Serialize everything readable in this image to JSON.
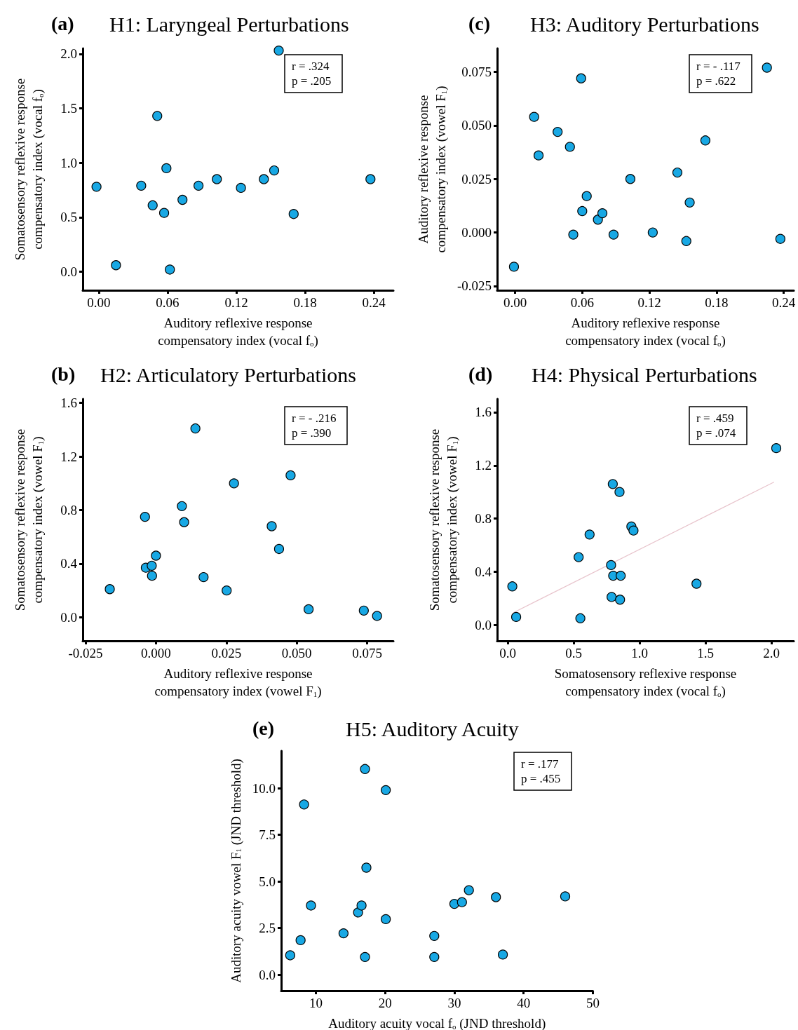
{
  "chart_data": [
    {
      "type": "scatter",
      "title": "H1: Laryngeal Perturbations",
      "xlabel": "Auditory reflexive response\ncompensatory index (vocal f$_{o}$)",
      "ylabel": "Somatosensory reflexive response\ncompensatory index (vocal f$_{o}$)",
      "annotations": [
        "(a)",
        "r = .324",
        "p = .205"
      ],
      "color": "#18a8e4",
      "marker": "circle",
      "grid": false,
      "x": [
        -0.002,
        0.015,
        0.037,
        0.047,
        0.051,
        0.057,
        0.059,
        0.062,
        0.073,
        0.087,
        0.103,
        0.124,
        0.144,
        0.153,
        0.157,
        0.17,
        0.237
      ],
      "values": [
        0.78,
        0.06,
        0.79,
        0.61,
        1.43,
        0.54,
        0.95,
        0.02,
        0.66,
        0.79,
        0.85,
        0.77,
        0.85,
        0.93,
        2.03,
        0.53,
        0.85
      ],
      "xlim": [
        -0.014,
        0.257
      ],
      "ylim": [
        -0.17,
        2.05
      ],
      "xticks": [
        {
          "value": 0,
          "label": "0.00"
        },
        0.06,
        0.12,
        0.18,
        0.24
      ],
      "yticks": [
        {
          "value": 0,
          "label": "0.0"
        },
        0.5,
        {
          "value": 1,
          "label": "1.0"
        },
        1.5,
        {
          "value": 2,
          "label": "2.0"
        }
      ]
    },
    {
      "type": "scatter",
      "title": "H3: Auditory Perturbations",
      "xlabel": "Auditory reflexive response\ncompensatory index (vocal f$_{o}$)",
      "ylabel": "Auditory reflexive response\ncompensatory index (vowel F$_{1}$)",
      "annotations": [
        "(c)",
        "r = - .117",
        "p = .622"
      ],
      "color": "#18a8e4",
      "marker": "circle",
      "grid": false,
      "x": [
        -0.001,
        0.017,
        0.021,
        0.038,
        0.049,
        0.052,
        0.059,
        0.06,
        0.064,
        0.074,
        0.078,
        0.088,
        0.103,
        0.123,
        0.145,
        0.153,
        0.156,
        0.17,
        0.225,
        0.237
      ],
      "values": [
        -0.016,
        0.054,
        0.036,
        0.047,
        0.04,
        -0.001,
        0.072,
        0.01,
        0.017,
        0.006,
        0.009,
        -0.001,
        0.025,
        0.0,
        0.028,
        -0.004,
        0.014,
        0.043,
        0.077,
        -0.003
      ],
      "xlim": [
        -0.016,
        0.249
      ],
      "ylim": [
        -0.027,
        0.086
      ],
      "xticks": [
        {
          "value": 0,
          "label": "0.00"
        },
        0.06,
        0.12,
        0.18,
        0.24
      ],
      "yticks": [
        -0.025,
        {
          "value": 0,
          "label": "0.000"
        },
        0.025,
        {
          "value": 0.05,
          "label": "0.050"
        },
        0.075
      ]
    },
    {
      "type": "scatter",
      "title": "H2: Articulatory Perturbations",
      "xlabel": "Auditory reflexive response\ncompensatory index (vowel F$_{1}$)",
      "ylabel": "Somatosensory reflexive response\ncompensatory index (vowel F$_{1}$)",
      "annotations": [
        "(b)",
        "r = - .216",
        "p = .390"
      ],
      "color": "#18a8e4",
      "marker": "circle",
      "grid": false,
      "x": [
        -0.0164,
        -0.0039,
        -0.0036,
        -0.0015,
        -0.0014,
        0.0,
        0.0092,
        0.01,
        0.014,
        0.0169,
        0.0251,
        0.0277,
        0.0411,
        0.0437,
        0.0478,
        0.0542,
        0.0738,
        0.0785
      ],
      "values": [
        0.21,
        0.75,
        0.37,
        0.385,
        0.31,
        0.46,
        0.83,
        0.71,
        1.41,
        0.3,
        0.2,
        1.0,
        0.68,
        0.51,
        1.06,
        0.06,
        0.05,
        0.01
      ],
      "xlim": [
        -0.026,
        0.0843
      ],
      "ylim": [
        -0.176,
        1.63
      ],
      "xticks": [
        -0.025,
        {
          "value": 0,
          "label": "0.000"
        },
        0.025,
        {
          "value": 0.05,
          "label": "0.050"
        },
        0.075
      ],
      "yticks": [
        {
          "value": 0,
          "label": "0.0"
        },
        0.4,
        0.8,
        1.2,
        1.6
      ]
    },
    {
      "type": "scatter",
      "title": "H4: Physical Perturbations",
      "xlabel": "Somatosensory reflexive response\ncompensatory index (vocal f$_{o}$)",
      "ylabel": "Somatosensory reflexive response\ncompensatory index (vowel F$_{1}$)",
      "annotations": [
        "(d)",
        "r = .459",
        "p = .074"
      ],
      "marker": "circle",
      "grid": false,
      "series": [
        {
          "type": "line",
          "color": "#e8c4cc",
          "line_style": "solid",
          "marker": "none",
          "x": [
            0.046,
            2.018
          ],
          "values": [
            0.094,
            1.074
          ]
        },
        {
          "color": "#18a8e4",
          "x": [
            0.035,
            0.064,
            0.538,
            0.551,
            0.621,
            0.784,
            0.788,
            0.797,
            0.8,
            0.848,
            0.852,
            0.857,
            0.938,
            0.954,
            1.432,
            2.037
          ],
          "values": [
            0.29,
            0.06,
            0.51,
            0.05,
            0.68,
            0.45,
            0.21,
            1.06,
            0.37,
            1.0,
            0.19,
            0.37,
            0.74,
            0.71,
            0.31,
            1.33
          ]
        }
      ],
      "xlim": [
        -0.08,
        2.17
      ],
      "ylim": [
        -0.12,
        1.7
      ],
      "xticks": [
        {
          "value": 0,
          "label": "0.0"
        },
        0.5,
        {
          "value": 1,
          "label": "1.0"
        },
        1.5,
        {
          "value": 2,
          "label": "2.0"
        }
      ],
      "yticks": [
        {
          "value": 0,
          "label": "0.0"
        },
        0.4,
        0.8,
        1.2,
        1.6
      ]
    },
    {
      "type": "scatter",
      "title": "H5: Auditory Acuity",
      "xlabel": "Auditory acuity vocal f$_{o}$ (JND threshold)",
      "ylabel": "Auditory acuity vowel F$_{1}$ (JND threshold)",
      "annotations": [
        "(e)",
        "r = .177",
        "p = .455"
      ],
      "color": "#18a8e4",
      "marker": "circle",
      "grid": false,
      "x": [
        6.3,
        7.8,
        8.3,
        9.3,
        14.0,
        16.1,
        16.6,
        17.1,
        17.1,
        17.3,
        20.1,
        20.1,
        27.1,
        27.1,
        30.0,
        31.1,
        32.1,
        36.0,
        37.0,
        46.0
      ],
      "values": [
        1.04,
        1.85,
        9.13,
        3.71,
        2.22,
        3.34,
        3.71,
        11.03,
        0.95,
        5.74,
        9.9,
        2.98,
        2.08,
        0.95,
        3.8,
        3.89,
        4.53,
        4.16,
        1.08,
        4.2
      ],
      "xlim": [
        5,
        50
      ],
      "ylim": [
        -0.86,
        12
      ],
      "xticks": [
        10,
        20,
        30,
        40,
        50
      ],
      "yticks": [
        {
          "value": 0,
          "label": "0.0"
        },
        2.5,
        {
          "value": 5,
          "label": "5.0"
        },
        7.5,
        {
          "value": 10,
          "label": "10.0"
        }
      ]
    }
  ]
}
